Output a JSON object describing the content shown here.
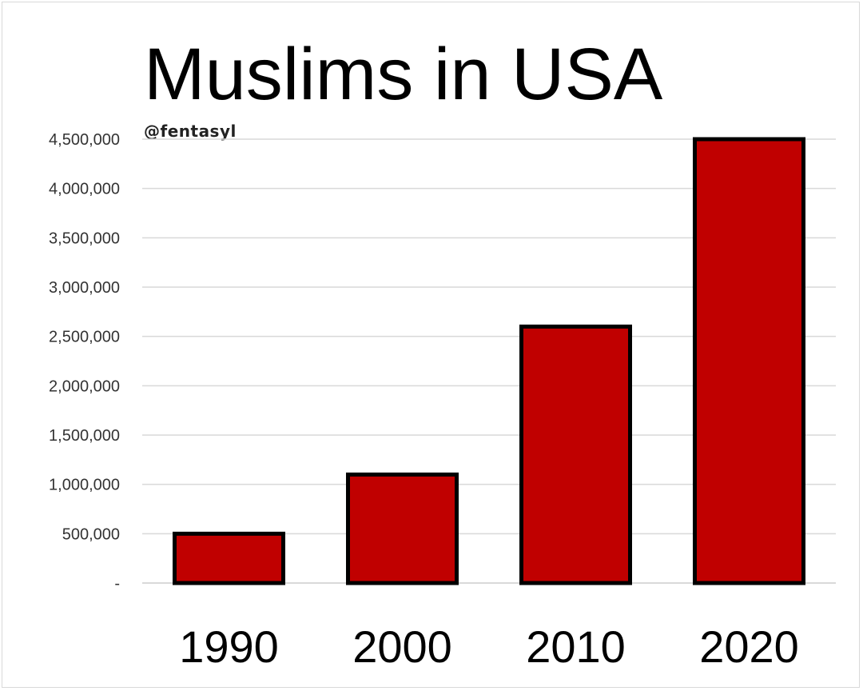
{
  "chart_data": {
    "type": "bar",
    "title": "Muslims in USA",
    "watermark": "@fentasyl",
    "categories": [
      "1990",
      "2000",
      "2010",
      "2020"
    ],
    "values": [
      500000,
      1100000,
      2600000,
      4500000
    ],
    "ylim": [
      0,
      4500000
    ],
    "yticks": [
      0,
      500000,
      1000000,
      1500000,
      2000000,
      2500000,
      3000000,
      3500000,
      4000000,
      4500000
    ],
    "ytick_labels": [
      "-",
      "500,000",
      "1,000,000",
      "1,500,000",
      "2,000,000",
      "2,500,000",
      "3,000,000",
      "3,500,000",
      "4,000,000",
      "4,500,000"
    ],
    "xlabel": "",
    "ylabel": "",
    "grid": true,
    "legend": "none",
    "colors": {
      "bar_fill": "#c00000",
      "bar_stroke": "#000000",
      "grid": "#d9d9d9"
    }
  }
}
